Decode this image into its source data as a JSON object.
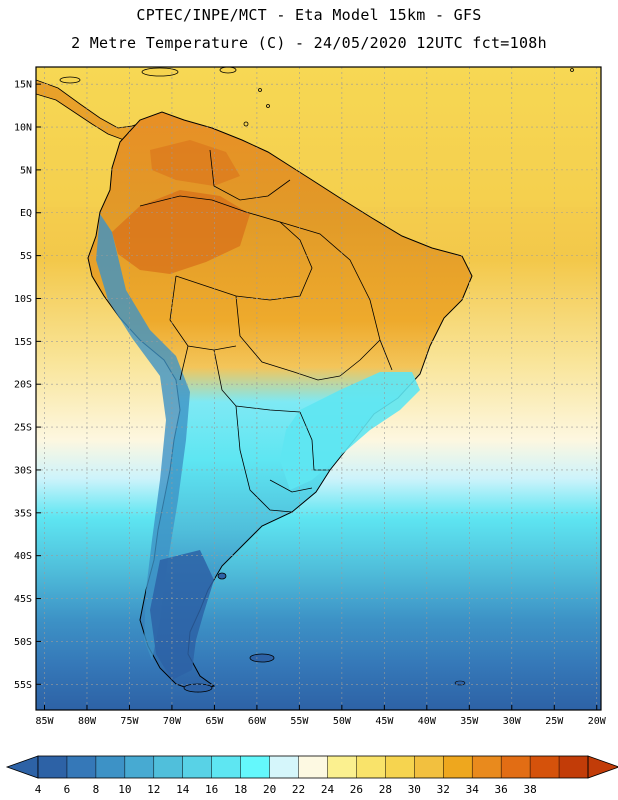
{
  "header": {
    "line1": "CPTEC/INPE/MCT -  Eta Model 15km - GFS",
    "line2": "2 Metre Temperature (C) - 24/05/2020 12UTC fct=108h"
  },
  "map": {
    "lat_labels": [
      "15N",
      "10N",
      "5N",
      "EQ",
      "5S",
      "10S",
      "15S",
      "20S",
      "25S",
      "30S",
      "35S",
      "40S",
      "45S",
      "50S",
      "55S"
    ],
    "lon_labels": [
      "85W",
      "80W",
      "75W",
      "70W",
      "65W",
      "60W",
      "55W",
      "50W",
      "45W",
      "40W",
      "35W",
      "30W",
      "25W",
      "20W"
    ],
    "lat_values": [
      15,
      10,
      5,
      0,
      -5,
      -10,
      -15,
      -20,
      -25,
      -30,
      -35,
      -40,
      -45,
      -50,
      -55
    ],
    "lon_values": [
      -85,
      -80,
      -75,
      -70,
      -65,
      -60,
      -55,
      -50,
      -45,
      -40,
      -35,
      -30,
      -25,
      -20
    ],
    "lat_range": [
      -58,
      17
    ],
    "lon_range": [
      -86,
      -19.5
    ]
  },
  "colorbar": {
    "labels": [
      "4",
      "6",
      "8",
      "10",
      "12",
      "14",
      "16",
      "18",
      "20",
      "22",
      "24",
      "26",
      "28",
      "30",
      "32",
      "34",
      "36",
      "38"
    ],
    "colors": [
      "#2d62a6",
      "#3578b8",
      "#3d92c6",
      "#47aad2",
      "#50bfdb",
      "#58d2e6",
      "#5ee6f2",
      "#64f8fc",
      "#d5f6fb",
      "#fdf9e2",
      "#fbf08f",
      "#f9e36a",
      "#f6d44f",
      "#f2c03f",
      "#eea71e",
      "#e98a1d",
      "#e26d14",
      "#d5520b",
      "#c23c08"
    ],
    "low_color": "#2d62a6",
    "high_color": "#c23c08"
  },
  "colors": {
    "land_warm": "#eaa32c",
    "land_hot": "#d8701a",
    "land_cool": "#58d2e6",
    "land_cold": "#2d62a6",
    "ocean_tropical": "#f6d44f",
    "ocean_mid": "#5ee6f2",
    "ocean_cold": "#2d62a6"
  }
}
